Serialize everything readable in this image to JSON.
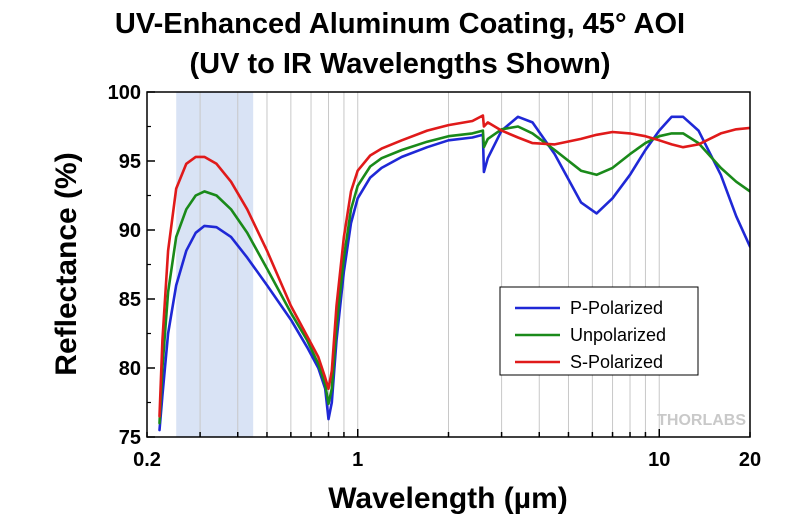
{
  "chart_data": {
    "type": "line",
    "title": "UV-Enhanced Aluminum Coating, 45° AOI",
    "subtitle": "(UV to IR Wavelengths Shown)",
    "xlabel": "Wavelength (µm)",
    "ylabel": "Reflectance (%)",
    "xscale": "log",
    "xlim": [
      0.2,
      20
    ],
    "ylim": [
      75,
      100
    ],
    "xticks": [
      0.2,
      1,
      10,
      20
    ],
    "xtick_labels": [
      "0.2",
      "1",
      "10",
      "20"
    ],
    "yticks": [
      75,
      80,
      85,
      90,
      95,
      100
    ],
    "ytick_labels": [
      "75",
      "80",
      "85",
      "90",
      "95",
      "100"
    ],
    "grid": "vertical minor and major gridlines",
    "shaded_region": {
      "x": [
        0.25,
        0.45
      ],
      "color": "#d9e3f5"
    },
    "legend_position": "lower-right",
    "watermark": "THORLABS",
    "series": [
      {
        "name": "P-Polarized",
        "color": "#1f28d6",
        "x": [
          0.22,
          0.225,
          0.235,
          0.25,
          0.27,
          0.29,
          0.31,
          0.34,
          0.38,
          0.43,
          0.5,
          0.6,
          0.68,
          0.74,
          0.78,
          0.8,
          0.82,
          0.85,
          0.9,
          0.95,
          1.0,
          1.1,
          1.2,
          1.4,
          1.7,
          2.0,
          2.4,
          2.6,
          2.62,
          2.7,
          3.0,
          3.4,
          3.8,
          4.5,
          5.5,
          6.2,
          7.0,
          8.0,
          9.0,
          10.0,
          11.0,
          12.0,
          13.5,
          16.0,
          18.0,
          20.0
        ],
        "y": [
          75.5,
          78.0,
          82.5,
          86.0,
          88.5,
          89.8,
          90.3,
          90.2,
          89.5,
          88.0,
          86.0,
          83.5,
          81.5,
          80.0,
          78.5,
          76.3,
          77.5,
          82.0,
          87.0,
          90.5,
          92.3,
          93.8,
          94.5,
          95.3,
          96.0,
          96.5,
          96.7,
          96.9,
          94.2,
          95.2,
          97.2,
          98.2,
          97.8,
          95.5,
          92.0,
          91.2,
          92.3,
          94.0,
          95.8,
          97.2,
          98.2,
          98.2,
          97.2,
          94.0,
          91.0,
          88.8
        ]
      },
      {
        "name": "Unpolarized",
        "color": "#1a8a1a",
        "x": [
          0.22,
          0.225,
          0.235,
          0.25,
          0.27,
          0.29,
          0.31,
          0.34,
          0.38,
          0.43,
          0.5,
          0.6,
          0.68,
          0.74,
          0.78,
          0.8,
          0.82,
          0.85,
          0.9,
          0.95,
          1.0,
          1.1,
          1.2,
          1.4,
          1.7,
          2.0,
          2.4,
          2.6,
          2.62,
          2.7,
          3.0,
          3.4,
          3.8,
          4.5,
          5.5,
          6.2,
          7.0,
          8.0,
          9.0,
          10.0,
          11.0,
          12.0,
          13.5,
          16.0,
          18.0,
          20.0
        ],
        "y": [
          76.0,
          80.0,
          85.5,
          89.5,
          91.5,
          92.5,
          92.8,
          92.5,
          91.5,
          89.8,
          87.2,
          84.0,
          82.0,
          80.3,
          78.8,
          77.4,
          78.5,
          83.0,
          88.0,
          91.5,
          93.2,
          94.6,
          95.2,
          95.8,
          96.4,
          96.8,
          97.0,
          97.2,
          96.0,
          96.6,
          97.3,
          97.5,
          97.0,
          95.8,
          94.3,
          94.0,
          94.5,
          95.5,
          96.3,
          96.8,
          97.0,
          97.0,
          96.3,
          94.5,
          93.5,
          92.8
        ]
      },
      {
        "name": "S-Polarized",
        "color": "#e01a1a",
        "x": [
          0.22,
          0.225,
          0.235,
          0.25,
          0.27,
          0.29,
          0.31,
          0.34,
          0.38,
          0.43,
          0.5,
          0.6,
          0.68,
          0.74,
          0.78,
          0.8,
          0.82,
          0.85,
          0.9,
          0.95,
          1.0,
          1.1,
          1.2,
          1.4,
          1.7,
          2.0,
          2.4,
          2.6,
          2.62,
          2.7,
          3.0,
          3.4,
          3.8,
          4.5,
          5.5,
          6.2,
          7.0,
          8.0,
          9.0,
          10.0,
          11.0,
          12.0,
          13.5,
          16.0,
          18.0,
          20.0
        ],
        "y": [
          76.5,
          82.0,
          88.5,
          93.0,
          94.8,
          95.3,
          95.3,
          94.8,
          93.5,
          91.5,
          88.5,
          84.5,
          82.3,
          80.8,
          79.3,
          78.5,
          79.8,
          84.5,
          89.5,
          92.8,
          94.3,
          95.4,
          95.9,
          96.5,
          97.2,
          97.6,
          97.9,
          98.3,
          97.5,
          97.8,
          97.2,
          96.7,
          96.3,
          96.2,
          96.6,
          96.9,
          97.1,
          97.0,
          96.8,
          96.5,
          96.2,
          96.0,
          96.2,
          97.0,
          97.3,
          97.4
        ]
      }
    ]
  }
}
